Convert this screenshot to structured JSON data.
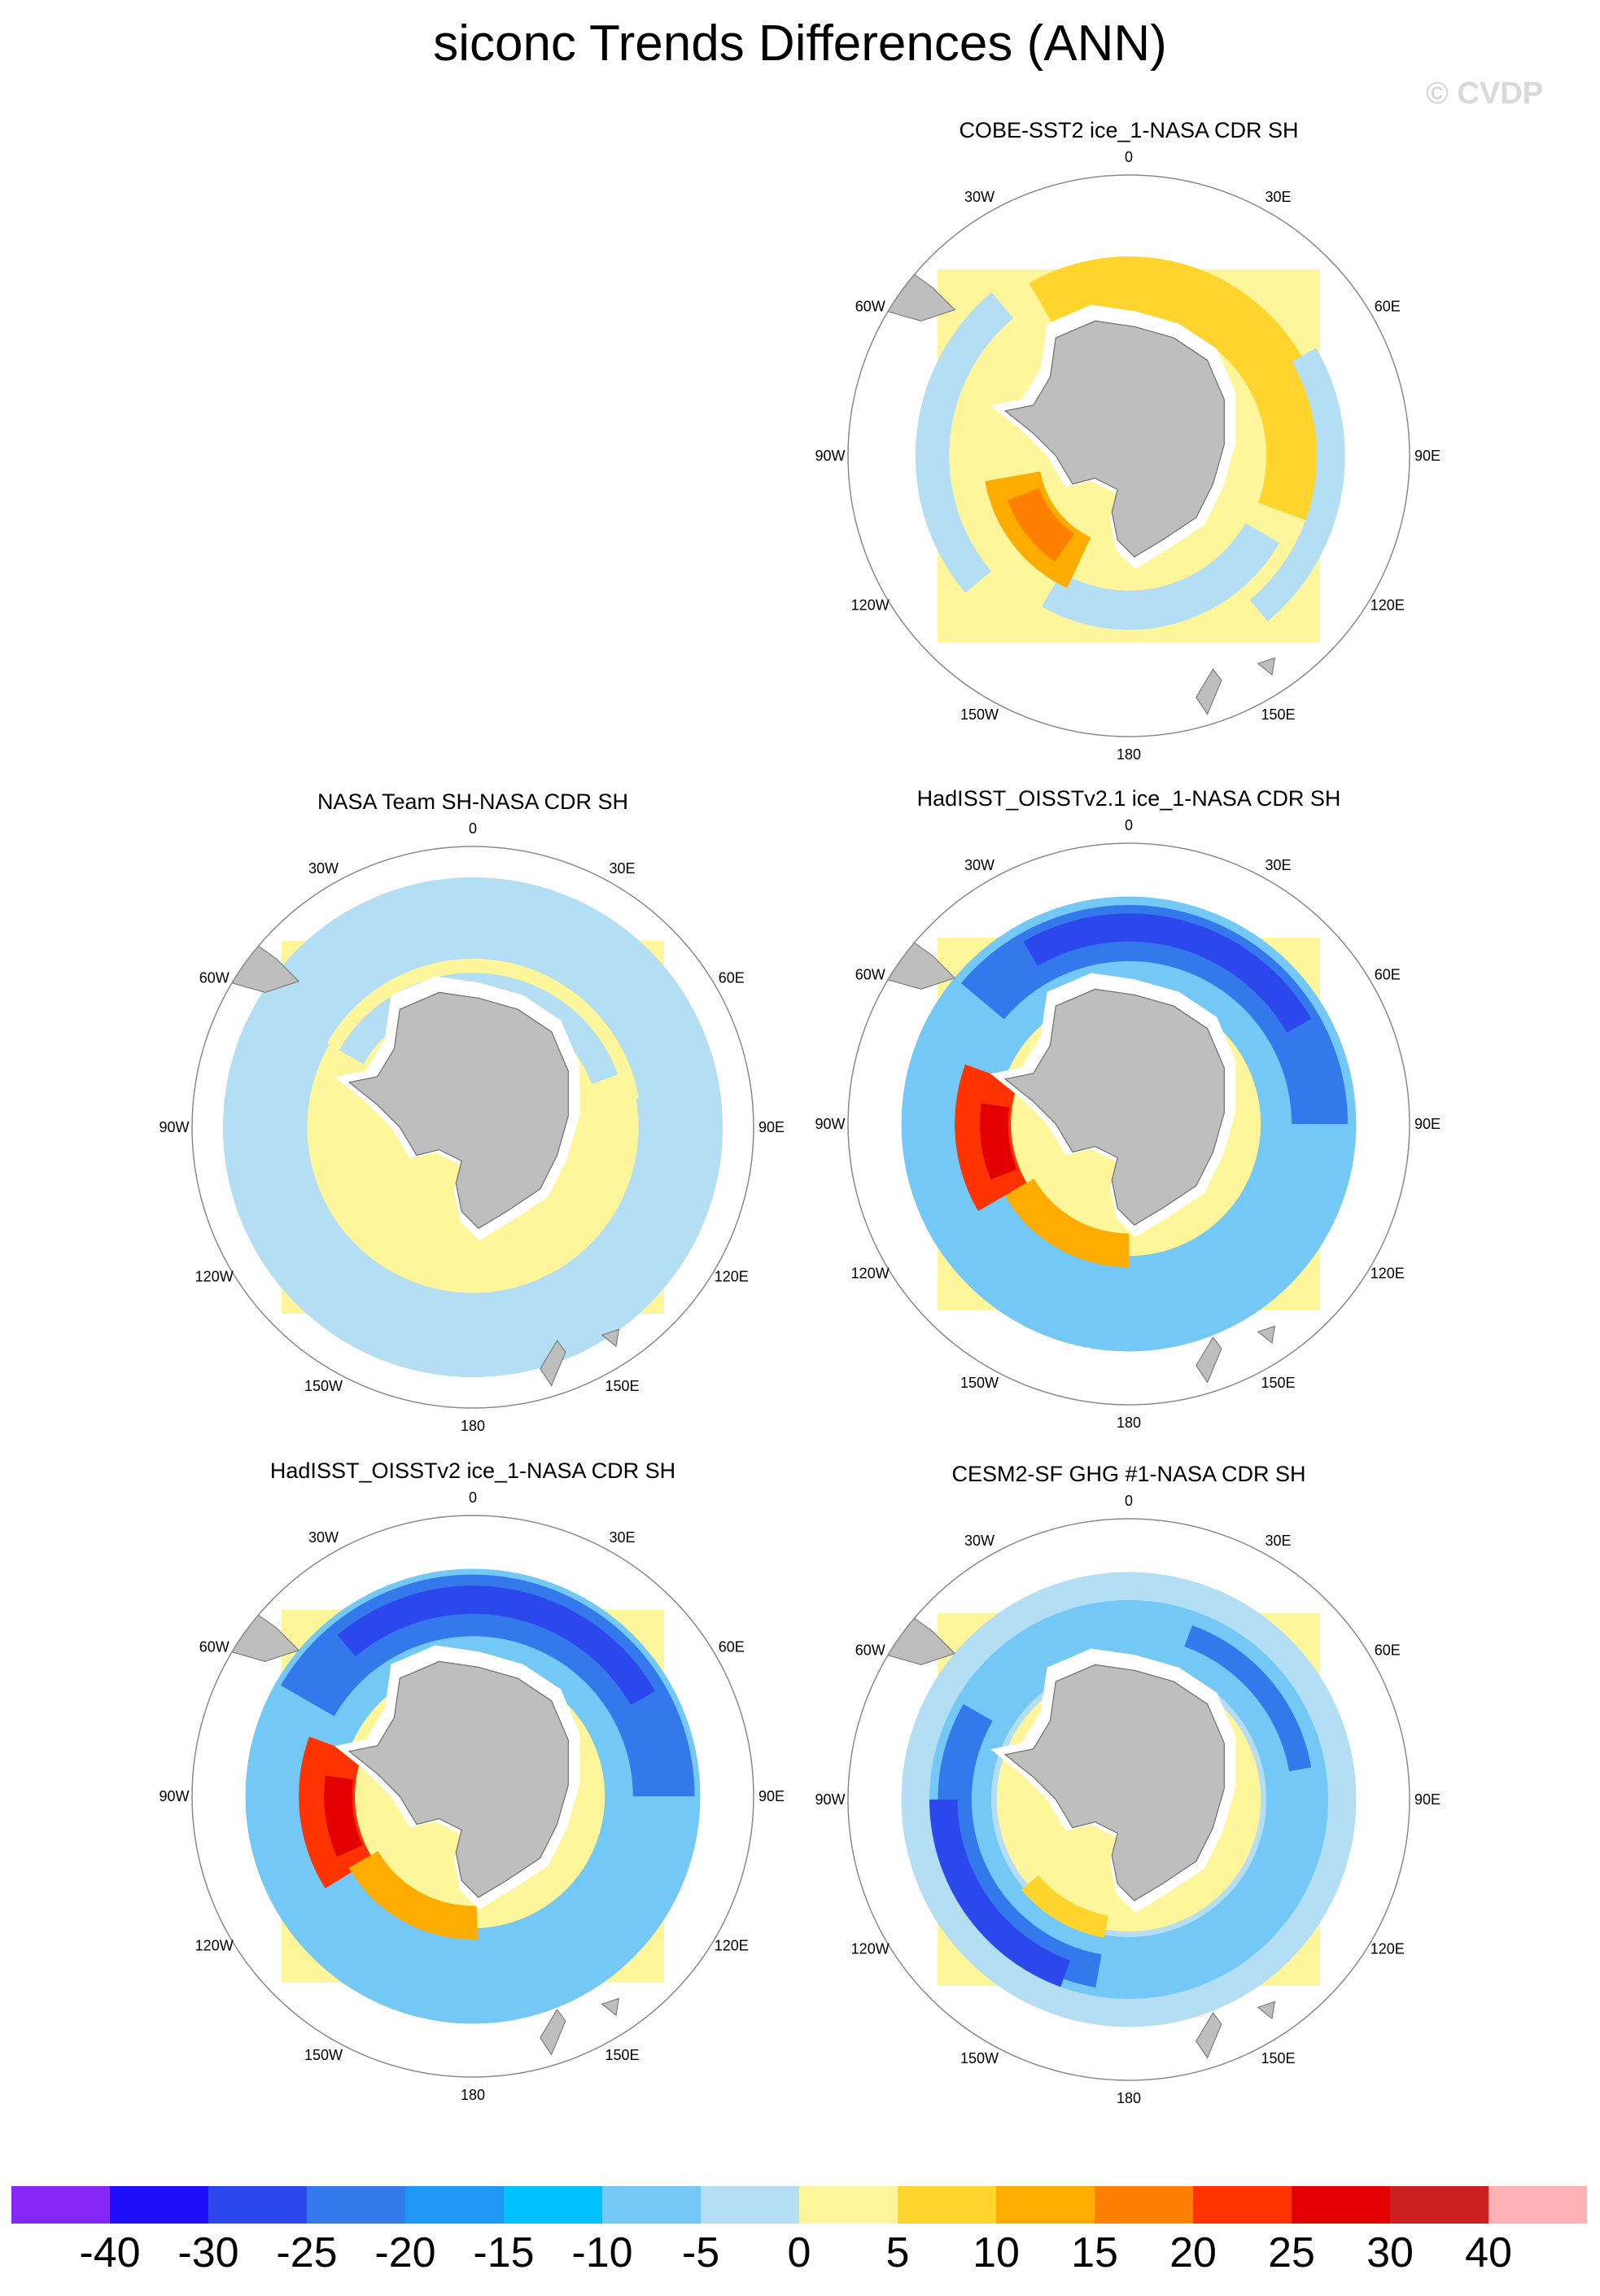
{
  "title": "siconc Trends Differences (ANN)",
  "watermark": "© CVDP",
  "longitude_labels": [
    "0",
    "30E",
    "60E",
    "90E",
    "120E",
    "150E",
    "180",
    "150W",
    "120W",
    "90W",
    "60W",
    "30W"
  ],
  "colors": {
    "land": "#bebebe",
    "coast": "#6e6e6e",
    "ring": "#8a8a8a",
    "ice_free": "#ffffff"
  },
  "colorbar": {
    "colors": [
      "#8526f5",
      "#1e0df9",
      "#2c47ec",
      "#3479eb",
      "#1e97f5",
      "#00c0ff",
      "#74c8f5",
      "#b4def3",
      "#fff59a",
      "#ffd42d",
      "#ffac00",
      "#ff7f00",
      "#ff3300",
      "#e30000",
      "#cc1f1f",
      "#ffb1b4"
    ],
    "labels": [
      "-40",
      "-30",
      "-25",
      "-20",
      "-15",
      "-10",
      "-5",
      "0",
      "5",
      "10",
      "15",
      "20",
      "25",
      "30",
      "40"
    ]
  },
  "panels": [
    {
      "title": "COBE-SST2 ice_1-NASA CDR SH",
      "background": "#fff59a",
      "bands": [
        {
          "r": 0.6,
          "w": 0.22,
          "color": "#ffd42d",
          "start": 330,
          "span": 140
        },
        {
          "r": 0.55,
          "w": 0.14,
          "color": "#b4def3",
          "start": 120,
          "span": 90
        },
        {
          "r": 0.42,
          "w": 0.2,
          "color": "#ffac00",
          "start": 205,
          "span": 55
        },
        {
          "r": 0.4,
          "w": 0.12,
          "color": "#ff7f00",
          "start": 215,
          "span": 35
        },
        {
          "r": 0.72,
          "w": 0.1,
          "color": "#b4def3",
          "start": 60,
          "span": 80
        },
        {
          "r": 0.7,
          "w": 0.12,
          "color": "#b4def3",
          "start": 230,
          "span": 90
        }
      ]
    },
    {
      "title": "NASA Team SH-NASA CDR SH",
      "background": "#fff59a",
      "bands": [
        {
          "r": 0.74,
          "w": 0.3,
          "color": "#b4def3",
          "start": 0,
          "span": 360
        },
        {
          "r": 0.56,
          "w": 0.08,
          "color": "#fff59a",
          "start": 300,
          "span": 140
        },
        {
          "r": 0.5,
          "w": 0.1,
          "color": "#b4def3",
          "start": 300,
          "span": 130
        },
        {
          "r": 0.4,
          "w": 0.1,
          "color": "#fff59a",
          "start": 60,
          "span": 200
        }
      ]
    },
    {
      "title": "HadISST_OISSTv2.1 ice_1-NASA CDR SH",
      "background": "#fff59a",
      "bands": [
        {
          "r": 0.64,
          "w": 0.34,
          "color": "#74c8f5",
          "start": 0,
          "span": 360
        },
        {
          "r": 0.68,
          "w": 0.2,
          "color": "#3479eb",
          "start": 310,
          "span": 140
        },
        {
          "r": 0.7,
          "w": 0.1,
          "color": "#2c47ec",
          "start": 330,
          "span": 90
        },
        {
          "r": 0.52,
          "w": 0.2,
          "color": "#ff3300",
          "start": 240,
          "span": 50
        },
        {
          "r": 0.48,
          "w": 0.1,
          "color": "#e30000",
          "start": 248,
          "span": 30
        },
        {
          "r": 0.45,
          "w": 0.12,
          "color": "#ffac00",
          "start": 180,
          "span": 60
        }
      ]
    },
    {
      "title": "HadISST_OISSTv2 ice_1-NASA CDR SH",
      "background": "#fff59a",
      "bands": [
        {
          "r": 0.64,
          "w": 0.34,
          "color": "#74c8f5",
          "start": 0,
          "span": 360
        },
        {
          "r": 0.68,
          "w": 0.22,
          "color": "#3479eb",
          "start": 300,
          "span": 150
        },
        {
          "r": 0.7,
          "w": 0.1,
          "color": "#2c47ec",
          "start": 320,
          "span": 100
        },
        {
          "r": 0.52,
          "w": 0.2,
          "color": "#ff3300",
          "start": 238,
          "span": 52
        },
        {
          "r": 0.48,
          "w": 0.1,
          "color": "#e30000",
          "start": 246,
          "span": 32
        },
        {
          "r": 0.45,
          "w": 0.12,
          "color": "#ffac00",
          "start": 178,
          "span": 62
        }
      ]
    },
    {
      "title": "CESM2-SF GHG #1-NASA CDR SH",
      "background": "#fff59a",
      "bands": [
        {
          "r": 0.64,
          "w": 0.34,
          "color": "#b4def3",
          "start": 0,
          "span": 360
        },
        {
          "r": 0.6,
          "w": 0.22,
          "color": "#74c8f5",
          "start": 0,
          "span": 360
        },
        {
          "r": 0.62,
          "w": 0.12,
          "color": "#3479eb",
          "start": 190,
          "span": 110
        },
        {
          "r": 0.66,
          "w": 0.1,
          "color": "#2c47ec",
          "start": 200,
          "span": 70
        },
        {
          "r": 0.62,
          "w": 0.08,
          "color": "#3479eb",
          "start": 20,
          "span": 60
        },
        {
          "r": 0.46,
          "w": 0.08,
          "color": "#ffd42d",
          "start": 190,
          "span": 40
        }
      ]
    }
  ]
}
